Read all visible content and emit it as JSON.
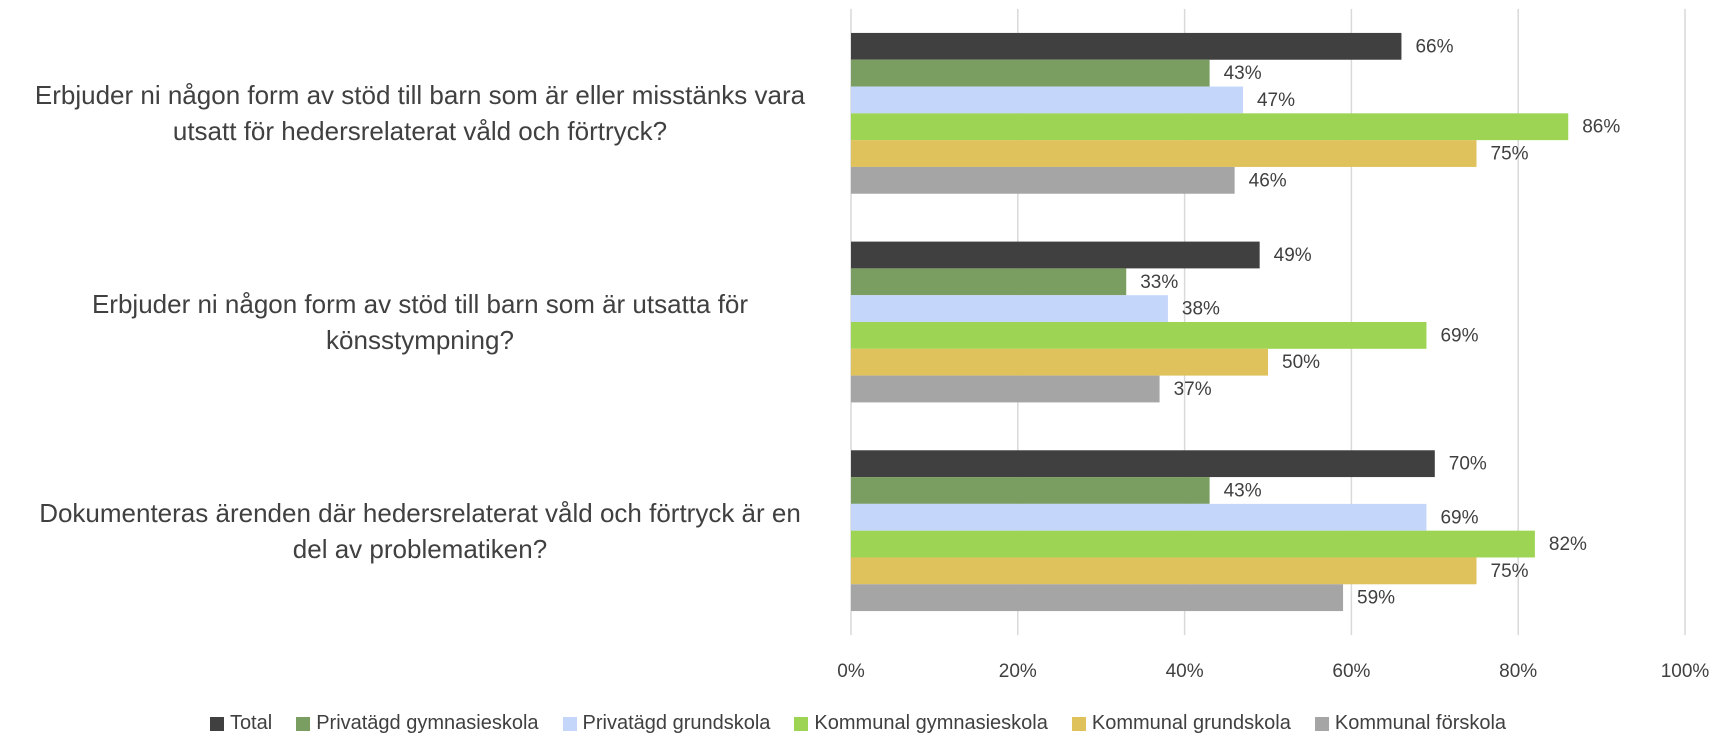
{
  "chart_data": {
    "type": "hbar",
    "categories": [
      "Erbjuder ni någon form av stöd till barn som är eller misstänks vara utsatt för hedersrelaterat våld och förtryck?",
      "Erbjuder ni någon form av stöd till barn som är utsatta för könsstympning?",
      "Dokumenteras ärenden där hedersrelaterat våld och förtryck är en del av problematiken?"
    ],
    "series": [
      {
        "name": "Total",
        "color": "#404040",
        "values": [
          66,
          49,
          70
        ],
        "value_labels": [
          "66%",
          "49%",
          "70%"
        ]
      },
      {
        "name": "Privatägd gymnasieskola",
        "color": "#7a9e62",
        "values": [
          43,
          33,
          43
        ],
        "value_labels": [
          "43%",
          "33%",
          "43%"
        ]
      },
      {
        "name": "Privatägd grundskola",
        "color": "#c5d6fb",
        "values": [
          47,
          38,
          69
        ],
        "value_labels": [
          "47%",
          "38%",
          "69%"
        ]
      },
      {
        "name": "Kommunal gymnasieskola",
        "color": "#9dd453",
        "values": [
          86,
          69,
          82
        ],
        "value_labels": [
          "86%",
          "69%",
          "82%"
        ]
      },
      {
        "name": "Kommunal grundskola",
        "color": "#dfc25b",
        "values": [
          75,
          50,
          75
        ],
        "value_labels": [
          "75%",
          "50%",
          "75%"
        ]
      },
      {
        "name": "Kommunal förskola",
        "color": "#a5a5a5",
        "values": [
          46,
          37,
          59
        ],
        "value_labels": [
          "46%",
          "37%",
          "59%"
        ]
      }
    ],
    "xlim": [
      0,
      100
    ],
    "xticks": [
      {
        "value": 0,
        "label": "0%"
      },
      {
        "value": 20,
        "label": "20%"
      },
      {
        "value": 40,
        "label": "40%"
      },
      {
        "value": 60,
        "label": "60%"
      },
      {
        "value": 80,
        "label": "80%"
      },
      {
        "value": 100,
        "label": "100%"
      }
    ],
    "grid": true,
    "legend": "bottom"
  }
}
